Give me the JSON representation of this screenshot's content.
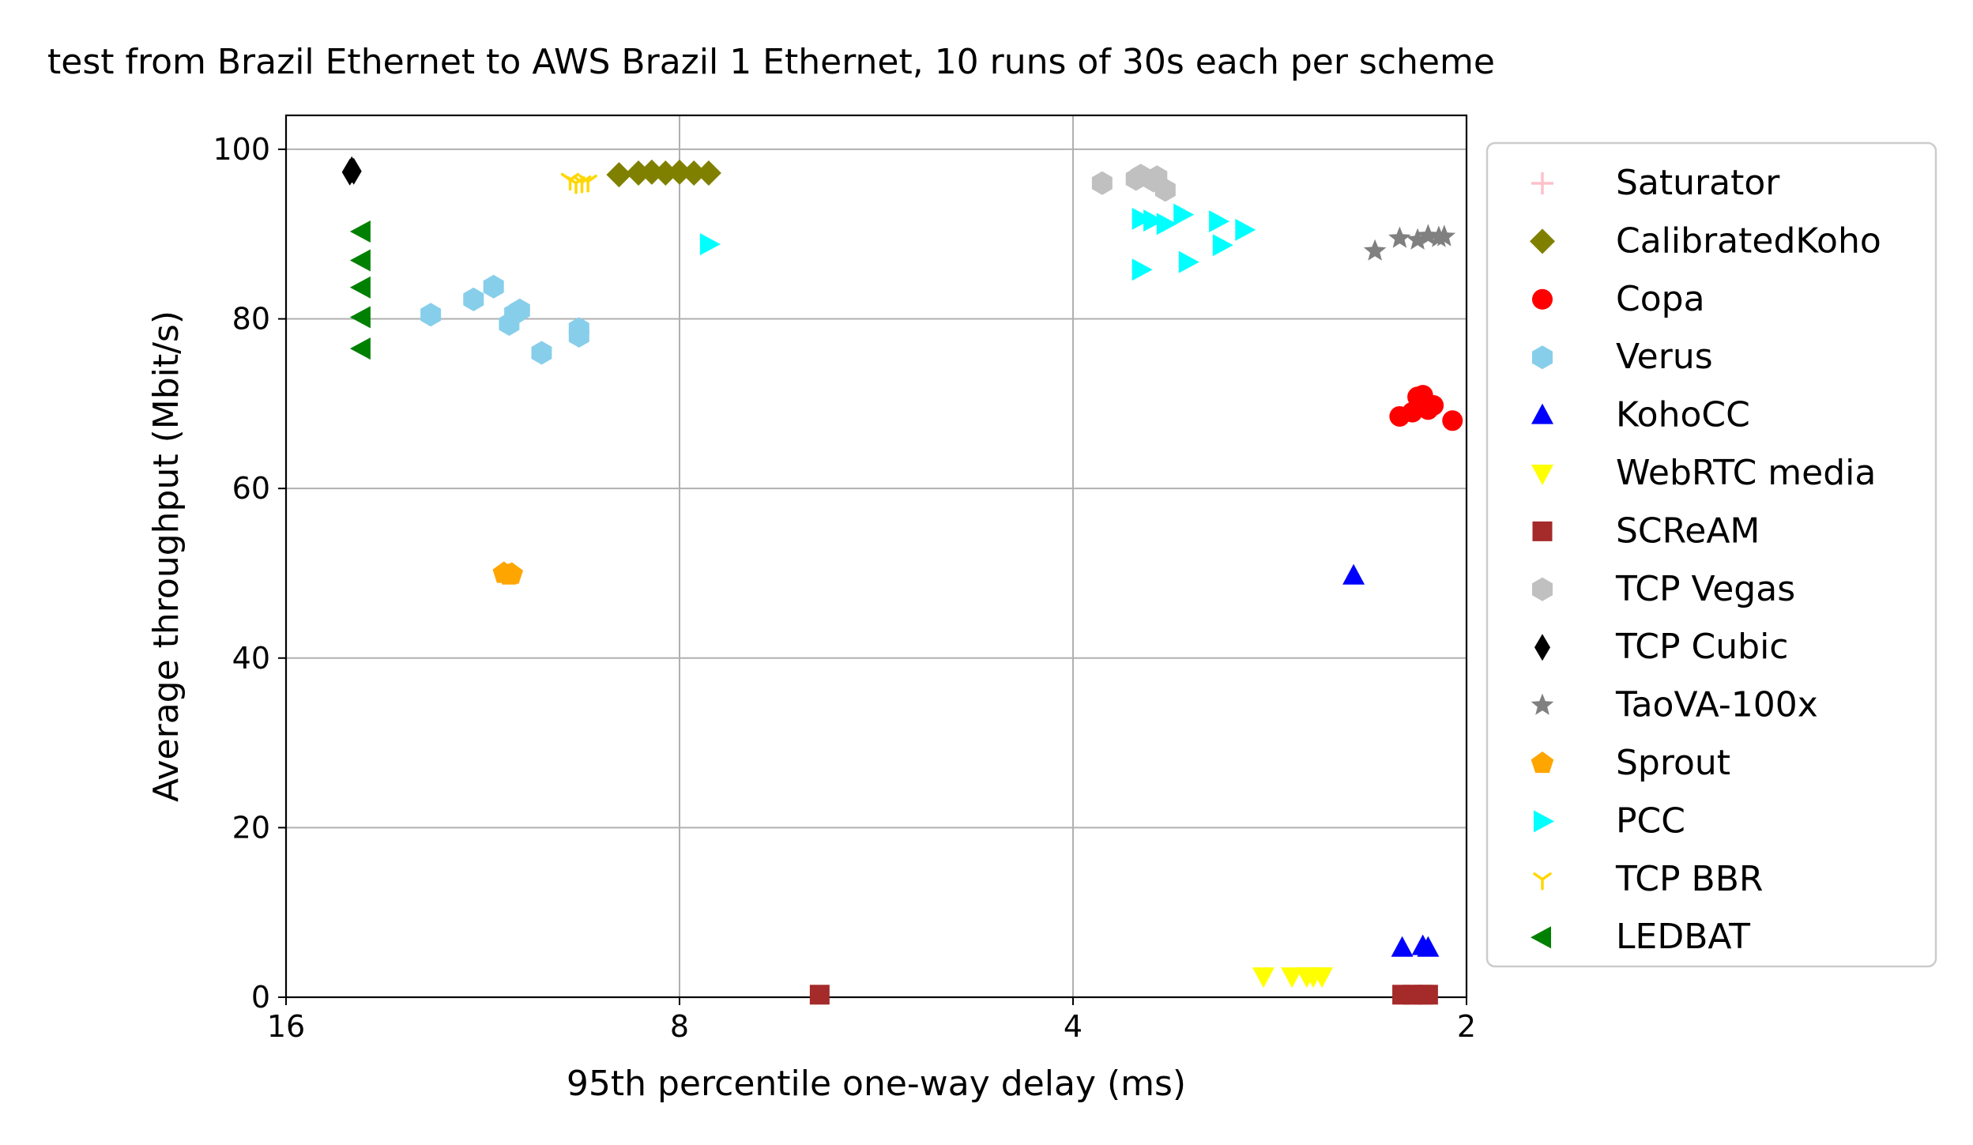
{
  "chart_data": {
    "type": "scatter",
    "title": "test from Brazil Ethernet to AWS Brazil 1 Ethernet, 10 runs of 30s each per scheme",
    "xlabel": "95th percentile one-way delay (ms)",
    "ylabel": "Average throughput (Mbit/s)",
    "x_scale": "log2",
    "x_inverted": true,
    "xlim": [
      16,
      2
    ],
    "ylim": [
      0,
      104
    ],
    "xticks": [
      16,
      8,
      4,
      2
    ],
    "xtick_labels": [
      "16",
      "8",
      "4",
      "2"
    ],
    "yticks": [
      0,
      20,
      40,
      60,
      80,
      100
    ],
    "ytick_labels": [
      "0",
      "20",
      "40",
      "60",
      "80",
      "100"
    ],
    "grid": true,
    "legend_position": "outside-right",
    "series": [
      {
        "name": "Saturator",
        "marker": "plus",
        "color": "#ffc0cb",
        "points": []
      },
      {
        "name": "CalibratedKoho",
        "marker": "diamond",
        "color": "#808000",
        "points": [
          [
            8.9,
            97.0
          ],
          [
            8.6,
            97.2
          ],
          [
            8.4,
            97.3
          ],
          [
            8.2,
            97.2
          ],
          [
            8.0,
            97.3
          ],
          [
            7.8,
            97.2
          ],
          [
            7.6,
            97.2
          ]
        ]
      },
      {
        "name": "Copa",
        "marker": "circle",
        "color": "#ff0000",
        "points": [
          [
            2.18,
            70.8
          ],
          [
            2.16,
            71.0
          ],
          [
            2.14,
            69.3
          ],
          [
            2.12,
            69.8
          ],
          [
            2.2,
            69.0
          ],
          [
            2.25,
            68.5
          ],
          [
            2.05,
            68.0
          ]
        ]
      },
      {
        "name": "Verus",
        "marker": "hexagon",
        "color": "#87ceeb",
        "points": [
          [
            12.4,
            80.5
          ],
          [
            11.5,
            82.3
          ],
          [
            11.1,
            83.8
          ],
          [
            10.8,
            79.4
          ],
          [
            10.6,
            81.0
          ],
          [
            10.7,
            80.6
          ],
          [
            10.2,
            76.0
          ],
          [
            9.55,
            78.8
          ],
          [
            9.55,
            78.0
          ]
        ]
      },
      {
        "name": "KohoCC",
        "marker": "triangle-up",
        "color": "#0000ff",
        "points": [
          [
            2.44,
            49.7
          ],
          [
            2.24,
            5.8
          ],
          [
            2.16,
            6.0
          ],
          [
            2.14,
            5.8
          ]
        ]
      },
      {
        "name": "WebRTC media",
        "marker": "triangle-down",
        "color": "#ffff00",
        "points": [
          [
            2.86,
            2.5
          ],
          [
            2.72,
            2.5
          ],
          [
            2.65,
            2.5
          ],
          [
            2.62,
            2.5
          ],
          [
            2.58,
            2.5
          ]
        ]
      },
      {
        "name": "SCReAM",
        "marker": "square",
        "color": "#a52a2a",
        "points": [
          [
            6.25,
            0.3
          ],
          [
            2.24,
            0.3
          ],
          [
            2.2,
            0.3
          ],
          [
            2.16,
            0.3
          ],
          [
            2.14,
            0.3
          ]
        ]
      },
      {
        "name": "TCP Vegas",
        "marker": "hexagon",
        "color": "#c0c0c0",
        "points": [
          [
            3.8,
            96.0
          ],
          [
            3.58,
            96.5
          ],
          [
            3.55,
            96.9
          ],
          [
            3.47,
            96.3
          ],
          [
            3.45,
            96.7
          ],
          [
            3.4,
            95.2
          ]
        ]
      },
      {
        "name": "TCP Cubic",
        "marker": "thin-diamond",
        "color": "#000000",
        "points": [
          [
            14.3,
            97.3
          ],
          [
            14.25,
            97.6
          ],
          [
            14.2,
            97.4
          ]
        ]
      },
      {
        "name": "TaoVA-100x",
        "marker": "star",
        "color": "#808080",
        "points": [
          [
            2.35,
            88.0
          ],
          [
            2.25,
            89.5
          ],
          [
            2.18,
            89.3
          ],
          [
            2.14,
            89.8
          ],
          [
            2.1,
            89.6
          ],
          [
            2.08,
            89.7
          ]
        ]
      },
      {
        "name": "Sprout",
        "marker": "pentagon",
        "color": "#ffa500",
        "points": [
          [
            10.9,
            50.0
          ],
          [
            10.8,
            49.8
          ],
          [
            10.75,
            49.9
          ]
        ]
      },
      {
        "name": "PCC",
        "marker": "triangle-right",
        "color": "#00ffff",
        "points": [
          [
            7.6,
            88.8
          ],
          [
            3.55,
            91.8
          ],
          [
            3.48,
            91.6
          ],
          [
            3.4,
            91.2
          ],
          [
            3.3,
            92.3
          ],
          [
            3.1,
            91.5
          ],
          [
            2.96,
            90.5
          ],
          [
            3.55,
            85.8
          ],
          [
            3.27,
            86.7
          ],
          [
            3.08,
            88.7
          ]
        ]
      },
      {
        "name": "TCP BBR",
        "marker": "tri-down",
        "color": "#ffd700",
        "points": [
          [
            9.7,
            96.4
          ],
          [
            9.6,
            96.0
          ],
          [
            9.5,
            96.1
          ],
          [
            9.4,
            96.2
          ]
        ]
      },
      {
        "name": "LEDBAT",
        "marker": "triangle-left",
        "color": "#008000",
        "points": [
          [
            14.0,
            90.3
          ],
          [
            14.0,
            86.9
          ],
          [
            14.0,
            83.7
          ],
          [
            14.0,
            80.2
          ],
          [
            14.0,
            76.5
          ]
        ]
      }
    ]
  }
}
